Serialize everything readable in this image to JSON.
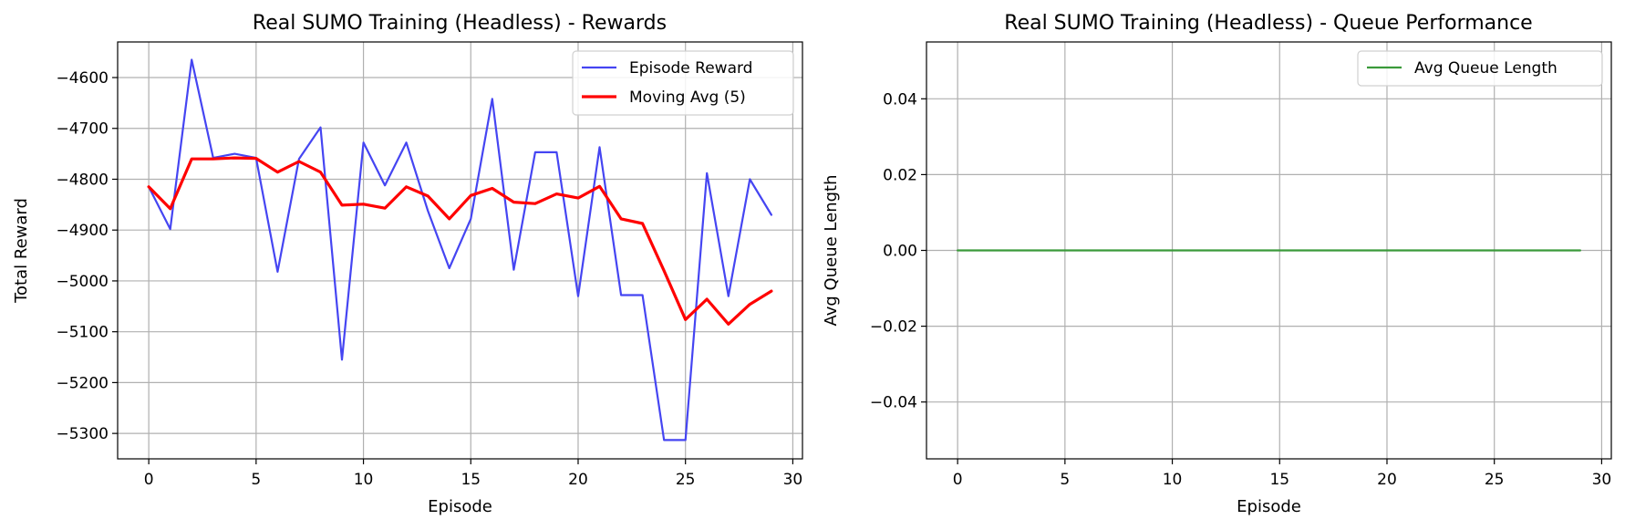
{
  "chart_data": [
    {
      "type": "line",
      "title": "Real SUMO Training (Headless) - Rewards",
      "xlabel": "Episode",
      "ylabel": "Total Reward",
      "xlim": [
        -1.45,
        30.45
      ],
      "ylim": [
        -5350,
        -4530
      ],
      "xticks": [
        0,
        5,
        10,
        15,
        20,
        25,
        30
      ],
      "yticks": [
        -5300,
        -5200,
        -5100,
        -5000,
        -4900,
        -4800,
        -4700,
        -4600
      ],
      "grid": true,
      "legend_position": "top-right",
      "x": [
        0,
        1,
        2,
        3,
        4,
        5,
        6,
        7,
        8,
        9,
        10,
        11,
        12,
        13,
        14,
        15,
        16,
        17,
        18,
        19,
        20,
        21,
        22,
        23,
        24,
        25,
        26,
        27,
        28,
        29
      ],
      "series": [
        {
          "name": "Episode Reward",
          "color": "#4545f2",
          "width": 2.2,
          "values": [
            -4815,
            -4898,
            -4565,
            -4758,
            -4750,
            -4758,
            -4982,
            -4760,
            -4698,
            -5155,
            -4728,
            -4812,
            -4728,
            -4862,
            -4975,
            -4878,
            -4642,
            -4978,
            -4747,
            -4747,
            -5030,
            -4737,
            -5028,
            -5028,
            -5313,
            -5313,
            -4788,
            -5030,
            -4800,
            -4870
          ]
        },
        {
          "name": "Moving Avg (5)",
          "color": "#ff0000",
          "width": 3.2,
          "x": [
            0,
            1,
            2,
            3,
            4,
            5,
            6,
            7,
            8,
            9,
            10,
            11,
            12,
            13,
            14,
            15,
            16,
            17,
            18,
            19,
            20,
            21,
            22,
            23,
            24,
            25,
            26,
            27,
            28,
            29
          ],
          "values": [
            -4815,
            -4858,
            -4760,
            -4760,
            -4758,
            -4759,
            -4786,
            -4765,
            -4786,
            -4851,
            -4849,
            -4857,
            -4815,
            -4833,
            -4878,
            -4832,
            -4818,
            -4845,
            -4848,
            -4829,
            -4837,
            -4814,
            -4878,
            -4887,
            -4980,
            -5076,
            -5036,
            -5085,
            -5046,
            -5020
          ]
        }
      ]
    },
    {
      "type": "line",
      "title": "Real SUMO Training (Headless) - Queue Performance",
      "xlabel": "Episode",
      "ylabel": "Avg Queue Length",
      "xlim": [
        -1.45,
        30.45
      ],
      "ylim": [
        -0.055,
        0.055
      ],
      "xticks": [
        0,
        5,
        10,
        15,
        20,
        25,
        30
      ],
      "yticks": [
        -0.04,
        -0.02,
        0.0,
        0.02,
        0.04
      ],
      "ytick_labels": [
        "−0.04",
        "−0.02",
        "0.00",
        "0.02",
        "0.04"
      ],
      "grid": true,
      "legend_position": "top-right",
      "x": [
        0,
        1,
        2,
        3,
        4,
        5,
        6,
        7,
        8,
        9,
        10,
        11,
        12,
        13,
        14,
        15,
        16,
        17,
        18,
        19,
        20,
        21,
        22,
        23,
        24,
        25,
        26,
        27,
        28,
        29
      ],
      "series": [
        {
          "name": "Avg Queue Length",
          "color": "#3a9a3a",
          "width": 2.2,
          "values": [
            0,
            0,
            0,
            0,
            0,
            0,
            0,
            0,
            0,
            0,
            0,
            0,
            0,
            0,
            0,
            0,
            0,
            0,
            0,
            0,
            0,
            0,
            0,
            0,
            0,
            0,
            0,
            0,
            0,
            0
          ]
        }
      ]
    }
  ]
}
